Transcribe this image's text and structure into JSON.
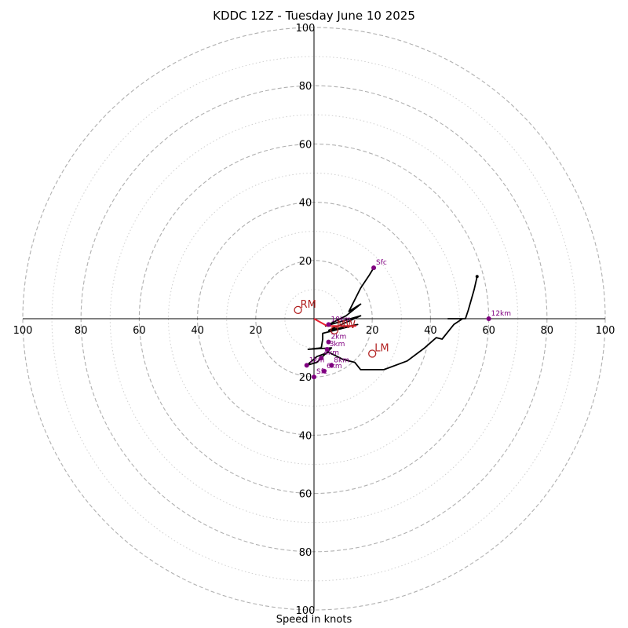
{
  "chart_data": {
    "type": "hodograph",
    "title": "KDDC 12Z - Tuesday June 10 2025",
    "xlabel": "Speed in knots",
    "axis_range": [
      -100,
      100
    ],
    "ring_major_step": 20,
    "ring_minor_step": 10,
    "tick_labels": [
      "100",
      "80",
      "60",
      "40",
      "20",
      "20",
      "40",
      "60",
      "80",
      "100"
    ],
    "colors": {
      "grid": "#b0b0b0",
      "trace": "#000000",
      "height_marker": "#800080",
      "storm_motion": "#b22222",
      "shear_vector": "#e8202f"
    },
    "trace_uv": [
      [
        20.5,
        17.5
      ],
      [
        19,
        15
      ],
      [
        16,
        10.5
      ],
      [
        14,
        6.5
      ],
      [
        12,
        2.5
      ],
      [
        16,
        5
      ],
      [
        11,
        1
      ],
      [
        4,
        -2.5
      ],
      [
        16,
        1
      ],
      [
        5,
        -4
      ],
      [
        15,
        -2
      ],
      [
        3,
        -5
      ],
      [
        3,
        -7
      ],
      [
        2.5,
        -10
      ],
      [
        -2,
        -10.5
      ],
      [
        6,
        -10
      ],
      [
        4,
        -12
      ],
      [
        1,
        -15
      ],
      [
        -2.5,
        -16
      ],
      [
        1,
        -13
      ],
      [
        5,
        -11.5
      ],
      [
        10,
        -14
      ],
      [
        14,
        -15
      ],
      [
        16,
        -17.5
      ],
      [
        24,
        -17.5
      ],
      [
        32,
        -14.5
      ],
      [
        38,
        -10
      ],
      [
        42,
        -6.5
      ],
      [
        44,
        -7
      ],
      [
        48,
        -2
      ],
      [
        51,
        0
      ],
      [
        46,
        0
      ],
      [
        52,
        0
      ],
      [
        53,
        3
      ],
      [
        55,
        10
      ],
      [
        56,
        14.5
      ]
    ],
    "height_markers": [
      {
        "label": "Sfc",
        "u": 20.5,
        "v": 17.5
      },
      {
        "label": "Sfc",
        "u": 0,
        "v": -20
      },
      {
        "label": "1km",
        "u": -2.5,
        "v": -16
      },
      {
        "label": "2km",
        "u": 5,
        "v": -8
      },
      {
        "label": "3km",
        "u": 4.5,
        "v": -10.5
      },
      {
        "label": "4km",
        "u": 2.5,
        "v": -13.5
      },
      {
        "label": "6km",
        "u": 3.5,
        "v": -18
      },
      {
        "label": "8km",
        "u": 6,
        "v": -16
      },
      {
        "label": "10km",
        "u": 5,
        "v": -2
      },
      {
        "label": "12km",
        "u": 60,
        "v": 0
      }
    ],
    "storm_motion": [
      {
        "label": "RM",
        "u": -5.5,
        "v": 3
      },
      {
        "label": "LM",
        "u": 20,
        "v": -12
      },
      {
        "label": "MW",
        "u": 7,
        "v": -4
      }
    ],
    "shear_vector": [
      [
        0,
        0
      ],
      [
        4.5,
        -2.5
      ],
      [
        14.5,
        -2.5
      ]
    ]
  }
}
